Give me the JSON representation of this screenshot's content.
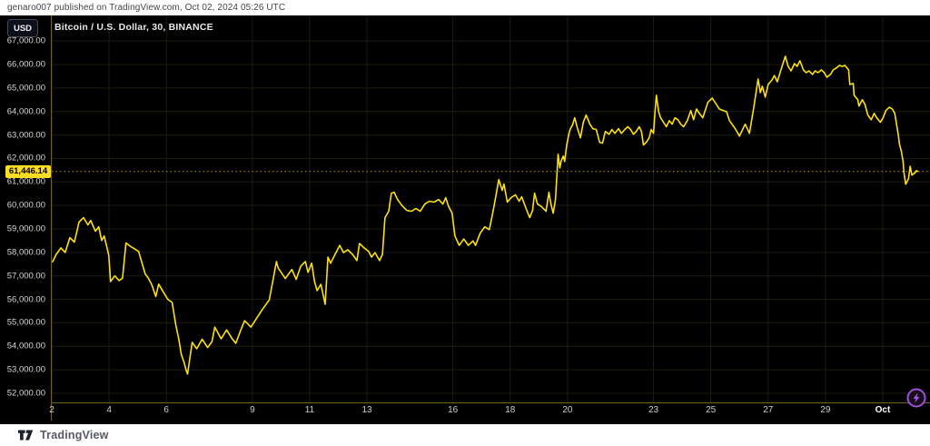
{
  "attribution": {
    "text": "genaro007 published on TradingView.com, Oct 02, 2024 05:26 UTC"
  },
  "symbol": {
    "currency_button": "USD",
    "title": "Bitcoin / U.S. Dollar, 30, BINANCE"
  },
  "price_scale": {
    "current_price_label": "61,446.14"
  },
  "footer": {
    "brand": "TradingView"
  },
  "colors": {
    "background": "#000000",
    "panel": "#ffffff",
    "line": "#ffe10a",
    "grid": "#1d1d11",
    "axis_border": "#6e6619",
    "dotted_price_line": "#b89b00",
    "tick_text": "#d8d8d8",
    "price_tag_bg": "#ffdd22",
    "flash_purple": "#a14fd6"
  },
  "chart_data": {
    "type": "line",
    "title": "Bitcoin / U.S. Dollar, 30, BINANCE",
    "exchange": "BINANCE",
    "interval_minutes": 30,
    "xlabel": "",
    "ylabel": "",
    "grid": true,
    "legend_position": "none",
    "current_price": 61446.14,
    "y_axis": {
      "min": 51600,
      "max": 67300,
      "tick_step": 1000,
      "ticks": [
        52000,
        53000,
        54000,
        55000,
        56000,
        57000,
        58000,
        59000,
        60000,
        61000,
        62000,
        63000,
        64000,
        65000,
        66000,
        67000
      ]
    },
    "x_axis": {
      "unit": "days since Sep 2 2024, range Sep 2 - Oct 2",
      "ticks": [
        {
          "label": "2",
          "d": 0
        },
        {
          "label": "4",
          "d": 2
        },
        {
          "label": "6",
          "d": 4
        },
        {
          "label": "9",
          "d": 7
        },
        {
          "label": "11",
          "d": 9
        },
        {
          "label": "13",
          "d": 11
        },
        {
          "label": "16",
          "d": 14
        },
        {
          "label": "18",
          "d": 16
        },
        {
          "label": "20",
          "d": 18
        },
        {
          "label": "23",
          "d": 21
        },
        {
          "label": "25",
          "d": 23
        },
        {
          "label": "27",
          "d": 25
        },
        {
          "label": "29",
          "d": 27
        },
        {
          "label": "Oct",
          "d": 29,
          "month": true
        }
      ]
    },
    "points": [
      [
        0.03,
        57600
      ],
      [
        0.15,
        57900
      ],
      [
        0.32,
        58190
      ],
      [
        0.47,
        58000
      ],
      [
        0.63,
        58630
      ],
      [
        0.79,
        58440
      ],
      [
        0.95,
        59290
      ],
      [
        1.11,
        59480
      ],
      [
        1.26,
        59170
      ],
      [
        1.36,
        59360
      ],
      [
        1.52,
        58900
      ],
      [
        1.64,
        59090
      ],
      [
        1.74,
        58510
      ],
      [
        1.83,
        58700
      ],
      [
        1.96,
        58040
      ],
      [
        1.99,
        57850
      ],
      [
        2.05,
        56760
      ],
      [
        2.2,
        57000
      ],
      [
        2.35,
        56800
      ],
      [
        2.47,
        56900
      ],
      [
        2.59,
        58400
      ],
      [
        2.75,
        58250
      ],
      [
        2.84,
        58190
      ],
      [
        3.03,
        58040
      ],
      [
        3.26,
        57080
      ],
      [
        3.38,
        56890
      ],
      [
        3.5,
        56600
      ],
      [
        3.63,
        56120
      ],
      [
        3.73,
        56650
      ],
      [
        3.9,
        56300
      ],
      [
        4.05,
        56000
      ],
      [
        4.2,
        55870
      ],
      [
        4.33,
        54900
      ],
      [
        4.43,
        54320
      ],
      [
        4.52,
        53660
      ],
      [
        4.62,
        53300
      ],
      [
        4.68,
        53010
      ],
      [
        4.74,
        52820
      ],
      [
        4.9,
        54170
      ],
      [
        5.06,
        53900
      ],
      [
        5.25,
        54300
      ],
      [
        5.44,
        53950
      ],
      [
        5.59,
        54200
      ],
      [
        5.69,
        54820
      ],
      [
        5.91,
        54320
      ],
      [
        6.1,
        54700
      ],
      [
        6.28,
        54350
      ],
      [
        6.42,
        54130
      ],
      [
        6.6,
        54700
      ],
      [
        6.73,
        55090
      ],
      [
        6.95,
        54820
      ],
      [
        7.15,
        55200
      ],
      [
        7.36,
        55590
      ],
      [
        7.59,
        55980
      ],
      [
        7.84,
        57610
      ],
      [
        7.9,
        57340
      ],
      [
        8.15,
        56890
      ],
      [
        8.38,
        57270
      ],
      [
        8.53,
        56850
      ],
      [
        8.69,
        57420
      ],
      [
        8.85,
        57610
      ],
      [
        8.94,
        57150
      ],
      [
        9.07,
        57540
      ],
      [
        9.17,
        56760
      ],
      [
        9.26,
        56370
      ],
      [
        9.39,
        56640
      ],
      [
        9.54,
        55790
      ],
      [
        9.64,
        57800
      ],
      [
        9.73,
        57540
      ],
      [
        9.89,
        57920
      ],
      [
        10.05,
        58300
      ],
      [
        10.18,
        57990
      ],
      [
        10.33,
        58110
      ],
      [
        10.49,
        57920
      ],
      [
        10.65,
        57650
      ],
      [
        10.74,
        58380
      ],
      [
        10.9,
        58190
      ],
      [
        11.06,
        58040
      ],
      [
        11.16,
        57800
      ],
      [
        11.28,
        57990
      ],
      [
        11.44,
        57650
      ],
      [
        11.54,
        57920
      ],
      [
        11.63,
        59480
      ],
      [
        11.76,
        59750
      ],
      [
        11.85,
        60520
      ],
      [
        11.95,
        60560
      ],
      [
        12.07,
        60250
      ],
      [
        12.23,
        59980
      ],
      [
        12.39,
        59790
      ],
      [
        12.55,
        59750
      ],
      [
        12.71,
        59870
      ],
      [
        12.86,
        59750
      ],
      [
        13.02,
        60060
      ],
      [
        13.18,
        60180
      ],
      [
        13.34,
        60140
      ],
      [
        13.5,
        60250
      ],
      [
        13.65,
        60060
      ],
      [
        13.75,
        60330
      ],
      [
        13.84,
        59980
      ],
      [
        13.97,
        59670
      ],
      [
        14.07,
        58700
      ],
      [
        14.22,
        58300
      ],
      [
        14.38,
        58570
      ],
      [
        14.54,
        58300
      ],
      [
        14.7,
        58490
      ],
      [
        14.79,
        58300
      ],
      [
        14.95,
        58820
      ],
      [
        15.11,
        59090
      ],
      [
        15.27,
        58970
      ],
      [
        15.42,
        59870
      ],
      [
        15.6,
        61100
      ],
      [
        15.72,
        60640
      ],
      [
        15.78,
        60910
      ],
      [
        15.9,
        60140
      ],
      [
        16.03,
        60330
      ],
      [
        16.18,
        60450
      ],
      [
        16.31,
        60180
      ],
      [
        16.4,
        60370
      ],
      [
        16.55,
        59870
      ],
      [
        16.68,
        59480
      ],
      [
        16.78,
        59790
      ],
      [
        16.85,
        60520
      ],
      [
        16.95,
        60060
      ],
      [
        17.1,
        59940
      ],
      [
        17.25,
        59750
      ],
      [
        17.35,
        60560
      ],
      [
        17.42,
        60060
      ],
      [
        17.5,
        59670
      ],
      [
        17.58,
        60250
      ],
      [
        17.63,
        61290
      ],
      [
        17.67,
        62180
      ],
      [
        17.73,
        61600
      ],
      [
        17.78,
        61910
      ],
      [
        17.85,
        62100
      ],
      [
        17.9,
        61870
      ],
      [
        17.97,
        62570
      ],
      [
        18.05,
        63070
      ],
      [
        18.1,
        63270
      ],
      [
        18.17,
        63420
      ],
      [
        18.25,
        63730
      ],
      [
        18.35,
        63270
      ],
      [
        18.45,
        62880
      ],
      [
        18.55,
        63540
      ],
      [
        18.65,
        63850
      ],
      [
        18.78,
        63460
      ],
      [
        18.88,
        63270
      ],
      [
        19.0,
        63230
      ],
      [
        19.12,
        62690
      ],
      [
        19.22,
        62650
      ],
      [
        19.32,
        63150
      ],
      [
        19.45,
        63030
      ],
      [
        19.55,
        63230
      ],
      [
        19.65,
        63070
      ],
      [
        19.78,
        63270
      ],
      [
        19.88,
        63070
      ],
      [
        20.0,
        63230
      ],
      [
        20.1,
        63350
      ],
      [
        20.2,
        63230
      ],
      [
        20.3,
        63030
      ],
      [
        20.4,
        63150
      ],
      [
        20.5,
        63350
      ],
      [
        20.58,
        63150
      ],
      [
        20.65,
        62570
      ],
      [
        20.75,
        62690
      ],
      [
        20.85,
        62880
      ],
      [
        20.92,
        63230
      ],
      [
        21.0,
        63070
      ],
      [
        21.05,
        63920
      ],
      [
        21.1,
        64690
      ],
      [
        21.18,
        63990
      ],
      [
        21.25,
        63730
      ],
      [
        21.35,
        63540
      ],
      [
        21.45,
        63350
      ],
      [
        21.55,
        63610
      ],
      [
        21.65,
        63460
      ],
      [
        21.75,
        63730
      ],
      [
        21.85,
        63650
      ],
      [
        21.95,
        63460
      ],
      [
        22.05,
        63350
      ],
      [
        22.18,
        63610
      ],
      [
        22.3,
        64040
      ],
      [
        22.4,
        63650
      ],
      [
        22.5,
        64110
      ],
      [
        22.6,
        63920
      ],
      [
        22.72,
        63730
      ],
      [
        22.9,
        64400
      ],
      [
        23.05,
        64570
      ],
      [
        23.3,
        64100
      ],
      [
        23.55,
        63990
      ],
      [
        23.65,
        63610
      ],
      [
        23.85,
        63270
      ],
      [
        24.0,
        62950
      ],
      [
        24.2,
        63460
      ],
      [
        24.35,
        63070
      ],
      [
        24.5,
        64180
      ],
      [
        24.65,
        65380
      ],
      [
        24.73,
        64800
      ],
      [
        24.8,
        65070
      ],
      [
        24.9,
        64610
      ],
      [
        25.0,
        65150
      ],
      [
        25.13,
        65340
      ],
      [
        25.22,
        65530
      ],
      [
        25.32,
        65260
      ],
      [
        25.45,
        65770
      ],
      [
        25.54,
        66120
      ],
      [
        25.6,
        66350
      ],
      [
        25.7,
        65920
      ],
      [
        25.8,
        65730
      ],
      [
        25.92,
        66040
      ],
      [
        26.01,
        65920
      ],
      [
        26.11,
        66160
      ],
      [
        26.23,
        65770
      ],
      [
        26.33,
        65650
      ],
      [
        26.42,
        65730
      ],
      [
        26.55,
        65580
      ],
      [
        26.64,
        65730
      ],
      [
        26.74,
        65650
      ],
      [
        26.86,
        65770
      ],
      [
        26.96,
        65650
      ],
      [
        27.05,
        65460
      ],
      [
        27.18,
        65580
      ],
      [
        27.27,
        65770
      ],
      [
        27.37,
        65840
      ],
      [
        27.49,
        65960
      ],
      [
        27.59,
        65920
      ],
      [
        27.68,
        65960
      ],
      [
        27.81,
        65770
      ],
      [
        27.85,
        65150
      ],
      [
        27.97,
        65190
      ],
      [
        28.0,
        64690
      ],
      [
        28.13,
        64500
      ],
      [
        28.17,
        64230
      ],
      [
        28.29,
        64500
      ],
      [
        28.38,
        64300
      ],
      [
        28.48,
        63850
      ],
      [
        28.6,
        63650
      ],
      [
        28.7,
        63920
      ],
      [
        28.79,
        63730
      ],
      [
        28.92,
        63540
      ],
      [
        29.01,
        63730
      ],
      [
        29.11,
        64040
      ],
      [
        29.23,
        64180
      ],
      [
        29.33,
        64110
      ],
      [
        29.42,
        63920
      ],
      [
        29.55,
        62950
      ],
      [
        29.58,
        62640
      ],
      [
        29.65,
        62290
      ],
      [
        29.71,
        61860
      ],
      [
        29.74,
        61400
      ],
      [
        29.8,
        60900
      ],
      [
        29.9,
        61130
      ],
      [
        29.96,
        61670
      ],
      [
        30.02,
        61290
      ],
      [
        30.05,
        61330
      ],
      [
        30.12,
        61380
      ],
      [
        30.18,
        61480
      ],
      [
        30.22,
        61446.14
      ]
    ]
  }
}
